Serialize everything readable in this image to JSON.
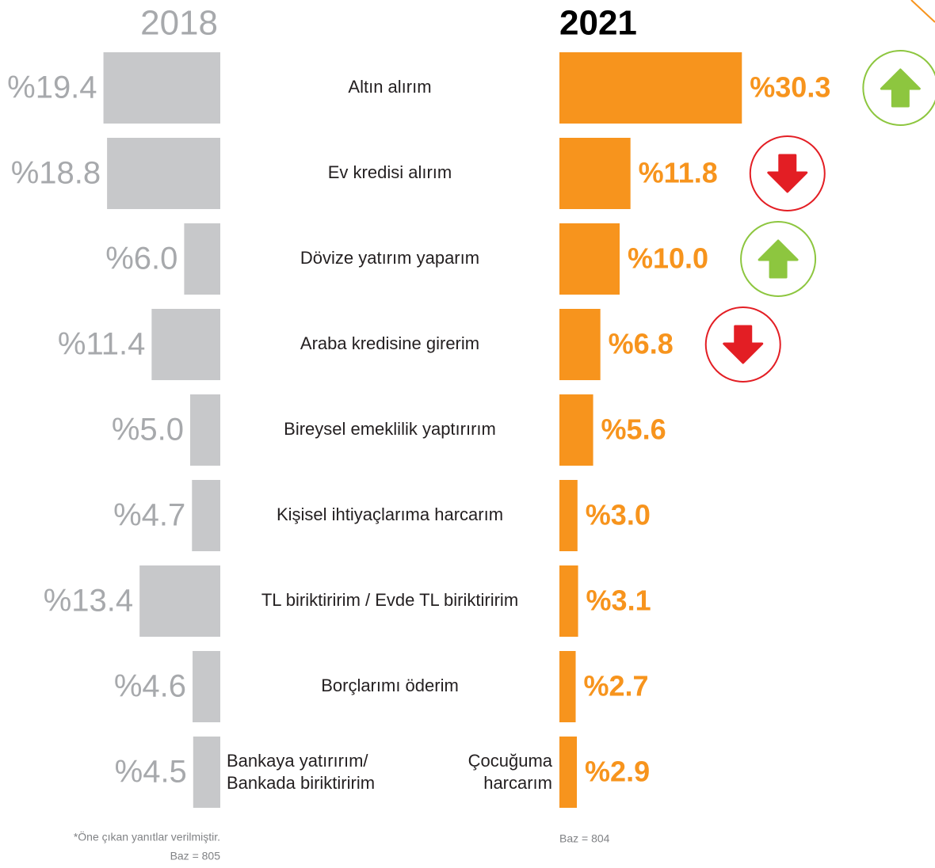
{
  "chart_data": {
    "type": "butterfly",
    "categories": [
      "Altın alırım",
      "Ev kredisi alırım",
      "Dövize yatırım yaparım",
      "Araba kredisine girerim",
      "Bireysel emeklilik yaptırırım",
      "Kişisel ihtiyaçlarıma harcarım",
      "TL biriktiririm / Evde TL biriktiririm",
      "Borçlarımı öderim",
      {
        "left": [
          "Bankaya yatırırım/",
          "Bankada biriktiririm"
        ],
        "right": [
          "Çocuğuma",
          "harcarım"
        ]
      }
    ],
    "series": [
      {
        "name": "2018",
        "color": "#c7c8ca",
        "side": "left",
        "values": [
          19.4,
          18.8,
          6.0,
          11.4,
          5.0,
          4.7,
          13.4,
          4.6,
          4.5
        ],
        "value_labels": [
          "%19.4",
          "%18.8",
          "%6.0",
          "%11.4",
          "%5.0",
          "%4.7",
          "%13.4",
          "%4.6",
          "%4.5"
        ]
      },
      {
        "name": "2021",
        "color": "#f7941d",
        "side": "right",
        "values": [
          30.3,
          11.8,
          10.0,
          6.8,
          5.6,
          3.0,
          3.1,
          2.7,
          2.9
        ],
        "value_labels": [
          "%30.3",
          "%11.8",
          "%10.0",
          "%6.8",
          "%5.6",
          "%3.0",
          "%3.1",
          "%2.7",
          "%2.9"
        ]
      }
    ],
    "trends": [
      "up",
      "down",
      "up",
      "down",
      null,
      null,
      null,
      null,
      null
    ],
    "trend_colors": {
      "up": "#8dc63f",
      "down": "#e31e24"
    },
    "notes": [
      "*Öne çıkan yanıtlar verilmiştir.",
      "Baz = 805",
      "Baz = 804"
    ]
  }
}
